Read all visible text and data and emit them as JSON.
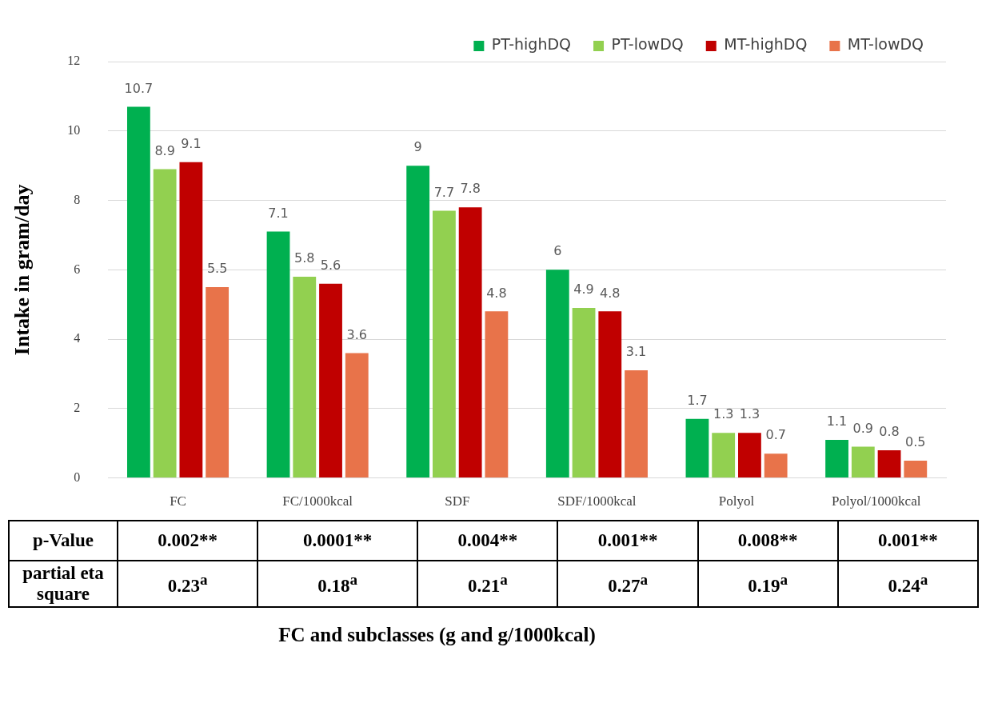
{
  "chart_data": {
    "type": "bar",
    "ylabel": "Intake in gram/day",
    "categories": [
      "FC",
      "FC/1000kcal",
      "SDF",
      "SDF/1000kcal",
      "Polyol",
      "Polyol/1000kcal"
    ],
    "series": [
      {
        "name": "PT-highDQ",
        "color": "#00b050",
        "values": [
          10.7,
          7.1,
          9,
          6,
          1.7,
          1.1
        ]
      },
      {
        "name": "PT-lowDQ",
        "color": "#92d050",
        "values": [
          8.9,
          5.8,
          7.7,
          4.9,
          1.3,
          0.9
        ]
      },
      {
        "name": "MT-highDQ",
        "color": "#c00000",
        "values": [
          9.1,
          5.6,
          7.8,
          4.8,
          1.3,
          0.8
        ]
      },
      {
        "name": "MT-lowDQ",
        "color": "#e8734a",
        "values": [
          5.5,
          3.6,
          4.8,
          3.1,
          0.7,
          0.5
        ]
      }
    ],
    "ylim": [
      0,
      12
    ],
    "yticks": [
      0,
      2,
      4,
      6,
      8,
      10,
      12
    ],
    "grid": "y",
    "legend": "top right",
    "data_labels": true,
    "annotations": [
      "p-Value",
      "0.002**",
      "0.0001**",
      "0.004**",
      "0.001**",
      "0.008**",
      "0.001**",
      "partial eta square",
      "0.23$^{a}$",
      "0.18$^{a}$",
      "0.21$^{a}$",
      "0.27$^{a}$",
      "0.19$^{a}$",
      "0.24$^{a}$",
      "FC and subclasses (g and g/1000kcal)"
    ]
  }
}
